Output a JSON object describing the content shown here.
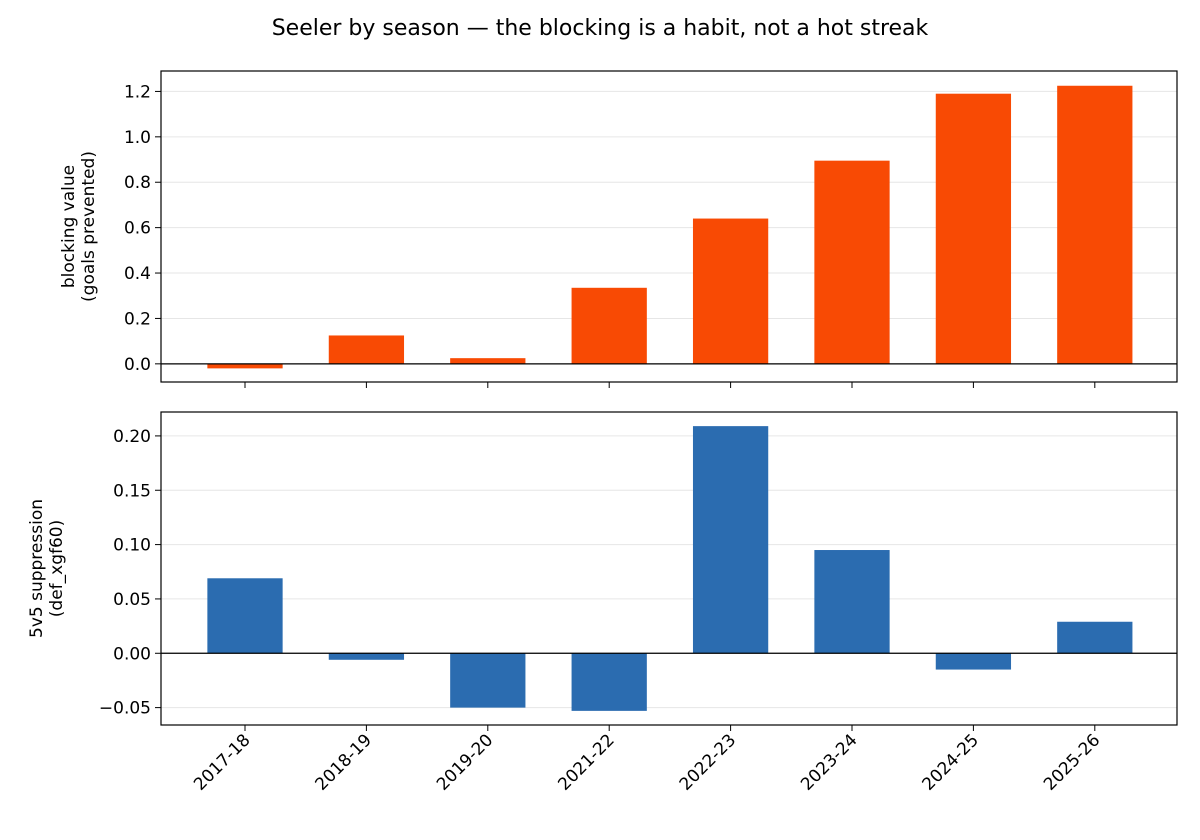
{
  "figure_title": "Seeler by season — the blocking is a habit, not a hot streak",
  "chart_data": [
    {
      "type": "bar",
      "categories": [
        "2017-18",
        "2018-19",
        "2019-20",
        "2021-22",
        "2022-23",
        "2023-24",
        "2024-25",
        "2025-26"
      ],
      "series": [
        {
          "values": [
            -0.02,
            0.125,
            0.025,
            0.335,
            0.64,
            0.895,
            1.19,
            1.225
          ],
          "color": "#f84a04"
        }
      ],
      "ylabel": "blocking value\n(goals prevented)",
      "ylabel_lines": [
        "blocking value",
        "(goals prevented)"
      ],
      "ylim": [
        -0.08,
        1.29
      ],
      "yticks": [
        0.0,
        0.2,
        0.4,
        0.6,
        0.8,
        1.0,
        1.2
      ],
      "ytick_labels": [
        "0.0",
        "0.2",
        "0.4",
        "0.6",
        "0.8",
        "1.0",
        "1.2"
      ],
      "grid": "horizontal",
      "show_xtick_labels": false
    },
    {
      "type": "bar",
      "categories": [
        "2017-18",
        "2018-19",
        "2019-20",
        "2021-22",
        "2022-23",
        "2023-24",
        "2024-25",
        "2025-26"
      ],
      "series": [
        {
          "values": [
            0.069,
            -0.006,
            -0.05,
            -0.053,
            0.209,
            0.095,
            -0.015,
            0.029
          ],
          "color": "#2b6cb0"
        }
      ],
      "ylabel": "5v5 suppression\n(def_xgf60)",
      "ylabel_lines": [
        "5v5 suppression",
        "(def_xgf60)"
      ],
      "ylim": [
        -0.066,
        0.222
      ],
      "yticks": [
        -0.05,
        0.0,
        0.05,
        0.1,
        0.15,
        0.2
      ],
      "ytick_labels": [
        "−0.05",
        "0.00",
        "0.05",
        "0.10",
        "0.15",
        "0.20"
      ],
      "grid": "horizontal",
      "show_xtick_labels": true
    }
  ]
}
